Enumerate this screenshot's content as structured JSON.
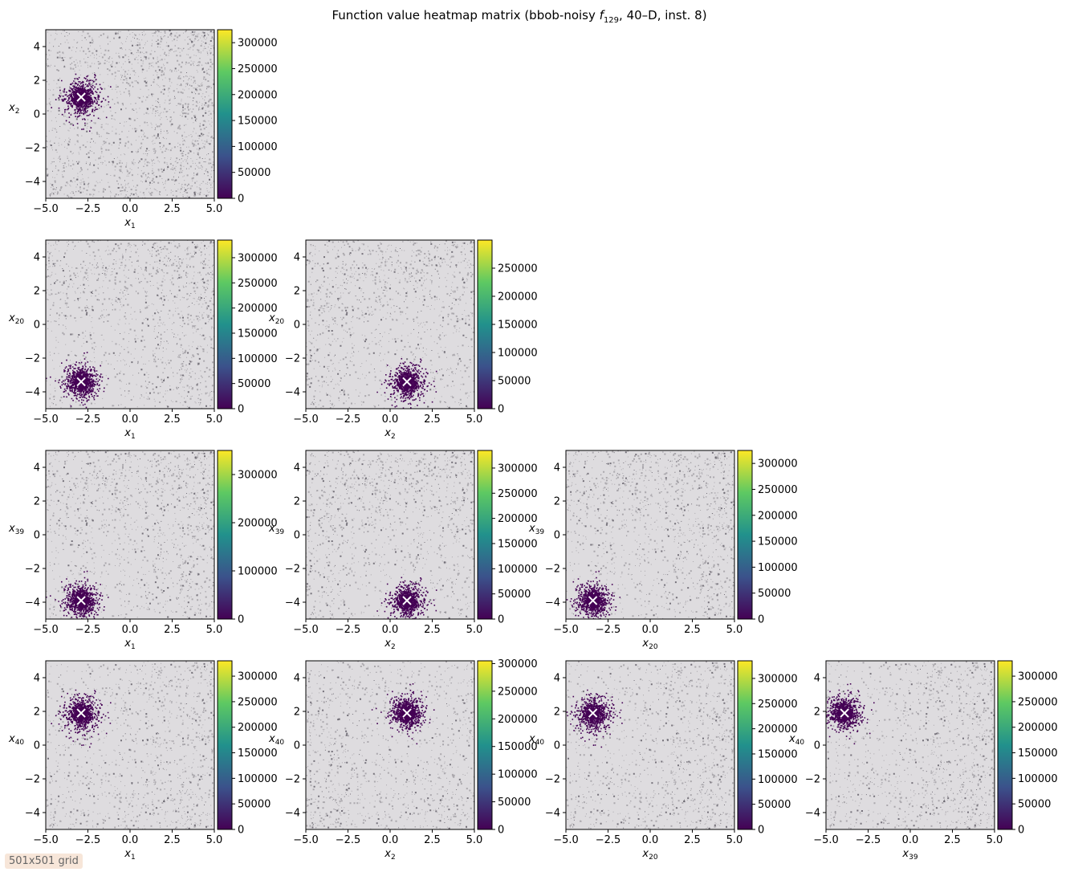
{
  "title_prefix": "Function value heatmap matrix (bbob-noisy ",
  "title_func_symbol": "f",
  "title_func_index": "129",
  "title_suffix": ", 40–D, inst. 8)",
  "grid_badge": "501x501 grid",
  "colormap": [
    "#440154",
    "#3b528b",
    "#21918c",
    "#5ec962",
    "#fde725"
  ],
  "background_color": "#dedcdf",
  "marker_color": "#ffffff",
  "chart_data": {
    "type": "heatmap",
    "x_range": [
      -5,
      5
    ],
    "y_range": [
      -5,
      5
    ],
    "axis_ticks": [
      -4,
      -2,
      0,
      2,
      4
    ],
    "axis_tick_labels_x": [
      "−5.0",
      "−2.5",
      "0.0",
      "2.5",
      "5.0"
    ],
    "axis_tick_values_x": [
      -5,
      -2.5,
      0,
      2.5,
      5
    ],
    "axis_tick_labels_y": [
      "−4",
      "−2",
      "0",
      "2",
      "4"
    ],
    "panels": [
      {
        "row": 0,
        "col": 0,
        "xvar": "1",
        "yvar": "2",
        "optimum": [
          -2.9,
          1.0
        ],
        "cbar_max": 325000,
        "cbar_ticks": [
          0,
          50000,
          100000,
          150000,
          200000,
          250000,
          300000
        ],
        "cbar_labels": [
          "0",
          "50000",
          "100000",
          "150000",
          "200000",
          "250000",
          "300000"
        ]
      },
      {
        "row": 1,
        "col": 0,
        "xvar": "1",
        "yvar": "20",
        "optimum": [
          -2.9,
          -3.4
        ],
        "cbar_max": 335000,
        "cbar_ticks": [
          0,
          50000,
          100000,
          150000,
          200000,
          250000,
          300000
        ],
        "cbar_labels": [
          "0",
          "50000",
          "100000",
          "150000",
          "200000",
          "250000",
          "300000"
        ]
      },
      {
        "row": 1,
        "col": 1,
        "xvar": "2",
        "yvar": "20",
        "optimum": [
          1.0,
          -3.4
        ],
        "cbar_max": 300000,
        "cbar_ticks": [
          0,
          50000,
          100000,
          150000,
          200000,
          250000
        ],
        "cbar_labels": [
          "0",
          "50000",
          "100000",
          "150000",
          "200000",
          "250000"
        ]
      },
      {
        "row": 2,
        "col": 0,
        "xvar": "1",
        "yvar": "39",
        "optimum": [
          -2.9,
          -3.9
        ],
        "cbar_max": 350000,
        "cbar_ticks": [
          0,
          100000,
          200000,
          300000
        ],
        "cbar_labels": [
          "0",
          "100000",
          "200000",
          "300000"
        ]
      },
      {
        "row": 2,
        "col": 1,
        "xvar": "2",
        "yvar": "39",
        "optimum": [
          1.0,
          -3.9
        ],
        "cbar_max": 335000,
        "cbar_ticks": [
          0,
          50000,
          100000,
          150000,
          200000,
          250000,
          300000
        ],
        "cbar_labels": [
          "0",
          "50000",
          "100000",
          "150000",
          "200000",
          "250000",
          "300000"
        ]
      },
      {
        "row": 2,
        "col": 2,
        "xvar": "20",
        "yvar": "39",
        "optimum": [
          -3.4,
          -3.9
        ],
        "cbar_max": 325000,
        "cbar_ticks": [
          0,
          50000,
          100000,
          150000,
          200000,
          250000,
          300000
        ],
        "cbar_labels": [
          "0",
          "50000",
          "100000",
          "150000",
          "200000",
          "250000",
          "300000"
        ]
      },
      {
        "row": 3,
        "col": 0,
        "xvar": "1",
        "yvar": "40",
        "optimum": [
          -2.9,
          1.9
        ],
        "cbar_max": 330000,
        "cbar_ticks": [
          0,
          50000,
          100000,
          150000,
          200000,
          250000,
          300000
        ],
        "cbar_labels": [
          "0",
          "50000",
          "100000",
          "150000",
          "200000",
          "250000",
          "300000"
        ]
      },
      {
        "row": 3,
        "col": 1,
        "xvar": "2",
        "yvar": "40",
        "optimum": [
          1.0,
          1.9
        ],
        "cbar_max": 305000,
        "cbar_ticks": [
          0,
          50000,
          100000,
          150000,
          200000,
          250000,
          300000
        ],
        "cbar_labels": [
          "0",
          "50000",
          "100000",
          "150000",
          "200000",
          "250000",
          "300000"
        ]
      },
      {
        "row": 3,
        "col": 2,
        "xvar": "20",
        "yvar": "40",
        "optimum": [
          -3.4,
          1.9
        ],
        "cbar_max": 335000,
        "cbar_ticks": [
          0,
          50000,
          100000,
          150000,
          200000,
          250000,
          300000
        ],
        "cbar_labels": [
          "0",
          "50000",
          "100000",
          "150000",
          "200000",
          "250000",
          "300000"
        ]
      },
      {
        "row": 3,
        "col": 3,
        "xvar": "39",
        "yvar": "40",
        "optimum": [
          -3.9,
          1.9
        ],
        "cbar_max": 330000,
        "cbar_ticks": [
          0,
          50000,
          100000,
          150000,
          200000,
          250000,
          300000
        ],
        "cbar_labels": [
          "0",
          "50000",
          "100000",
          "150000",
          "200000",
          "250000",
          "300000"
        ]
      }
    ]
  }
}
